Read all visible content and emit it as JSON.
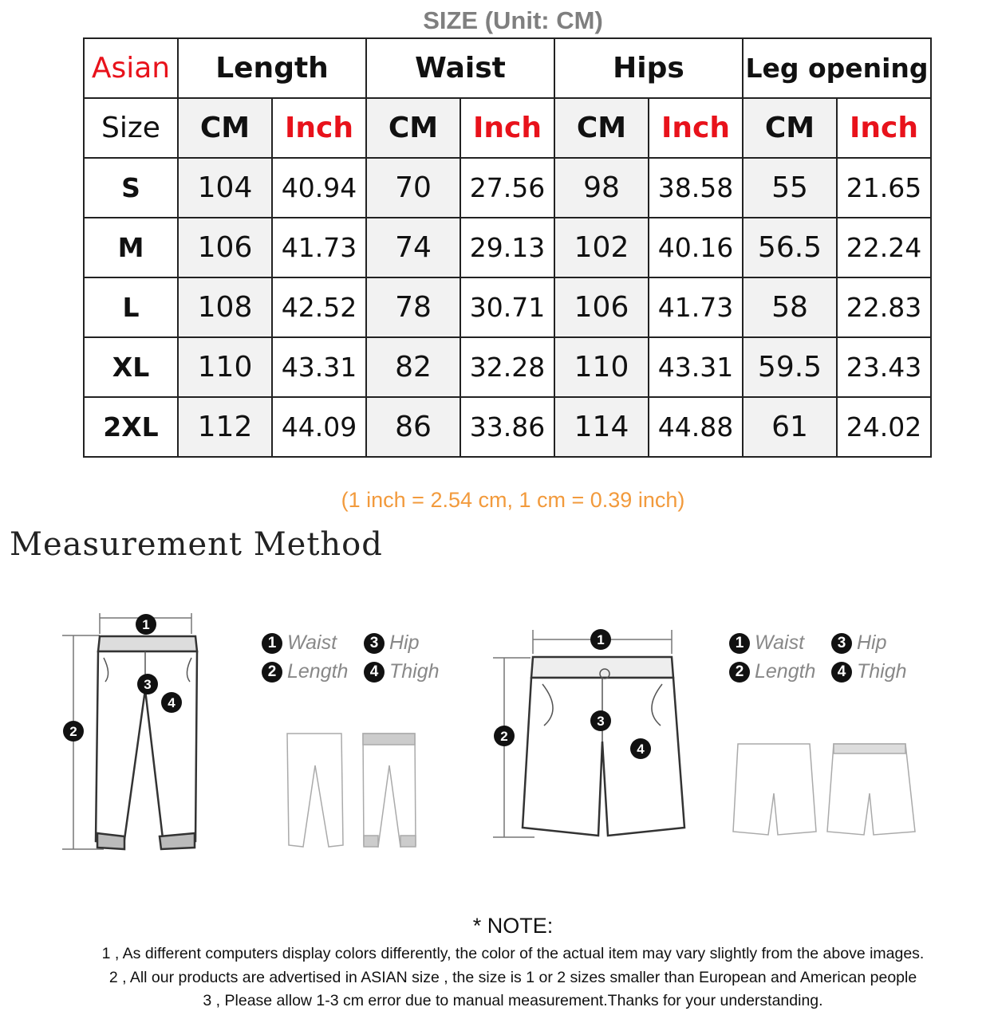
{
  "title": "SIZE (Unit: CM)",
  "table": {
    "corner_top": "Asian",
    "corner_bottom": "Size",
    "groups": [
      "Length",
      "Waist",
      "Hips",
      "Leg opening"
    ],
    "cm_label": "CM",
    "inch_label": "Inch",
    "rows": [
      {
        "size": "S",
        "values": [
          "104",
          "40.94",
          "70",
          "27.56",
          "98",
          "38.58",
          "55",
          "21.65"
        ]
      },
      {
        "size": "M",
        "values": [
          "106",
          "41.73",
          "74",
          "29.13",
          "102",
          "40.16",
          "56.5",
          "22.24"
        ]
      },
      {
        "size": "L",
        "values": [
          "108",
          "42.52",
          "78",
          "30.71",
          "106",
          "41.73",
          "58",
          "22.83"
        ]
      },
      {
        "size": "XL",
        "values": [
          "110",
          "43.31",
          "82",
          "32.28",
          "110",
          "43.31",
          "59.5",
          "23.43"
        ]
      },
      {
        "size": "2XL",
        "values": [
          "112",
          "44.09",
          "86",
          "33.86",
          "114",
          "44.88",
          "61",
          "24.02"
        ]
      }
    ]
  },
  "conversion": "(1 inch = 2.54 cm, 1 cm = 0.39 inch)",
  "measurement_title": "Measurement  Method",
  "legend": [
    {
      "num": "1",
      "label": "Waist"
    },
    {
      "num": "2",
      "label": "Length"
    },
    {
      "num": "3",
      "label": "Hip"
    },
    {
      "num": "4",
      "label": "Thigh"
    }
  ],
  "note": {
    "heading": "* NOTE:",
    "lines": [
      "1 , As different computers display colors differently, the color of the actual item may vary slightly from the above images.",
      "2 , All our products are advertised in ASIAN size , the size is 1 or 2 sizes smaller than European and American people",
      "3 , Please allow 1-3 cm error due to manual measurement.Thanks for your understanding."
    ]
  },
  "colors": {
    "accent_red": "#e8121b",
    "conversion_orange": "#f29a3c",
    "title_gray": "#7f7f7f",
    "cm_cell_bg": "#f2f2f2"
  }
}
